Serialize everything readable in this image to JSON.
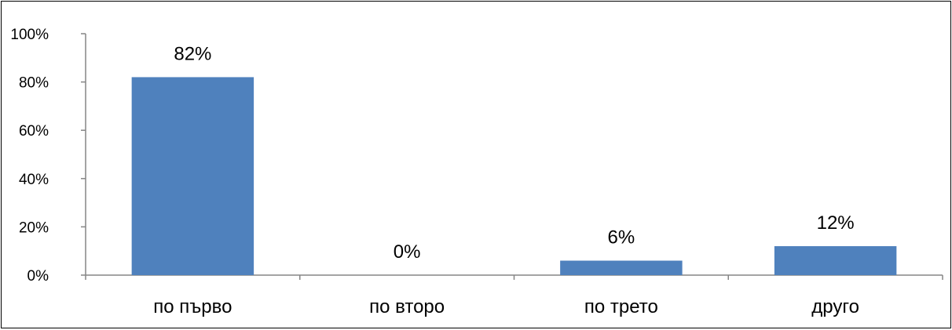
{
  "chart_data": {
    "type": "bar",
    "categories": [
      "по първо",
      "по второ",
      "по трето",
      "друго"
    ],
    "values": [
      82,
      0,
      6,
      12
    ],
    "value_labels": [
      "82%",
      "0%",
      "6%",
      "12%"
    ],
    "yticks": [
      "0%",
      "20%",
      "40%",
      "60%",
      "80%",
      "100%"
    ],
    "ylim": [
      0,
      100
    ],
    "bar_color": "#4F81BD",
    "grid": false,
    "legend": "none"
  }
}
